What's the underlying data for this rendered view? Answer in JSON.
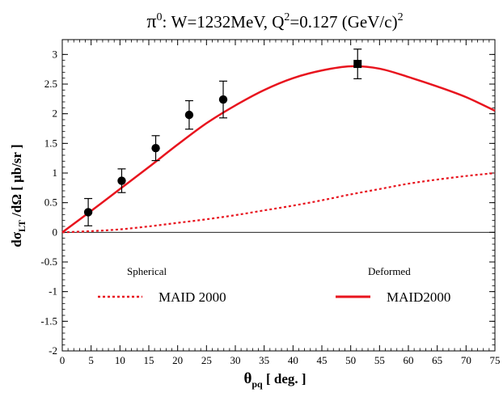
{
  "chart_data": {
    "type": "line",
    "title": {
      "prefix": "π",
      "prefix_sup": "0",
      "mid": ": W=1232MeV, Q",
      "mid_sup": "2",
      "suffix": "=0.127 (GeV/c)",
      "suffix_sup": "2"
    },
    "xlabel": {
      "base": "θ",
      "sub": "pq",
      "rest": " [ deg. ]"
    },
    "ylabel": {
      "pre": "dσ",
      "sub": "LT",
      "rest": " /dΩ [ μb/sr ]"
    },
    "xlim": [
      0,
      75
    ],
    "ylim": [
      -2,
      3.25
    ],
    "xticks": [
      0,
      5,
      10,
      15,
      20,
      25,
      30,
      35,
      40,
      45,
      50,
      55,
      60,
      65,
      70,
      75
    ],
    "yticks": [
      -2,
      -1.5,
      -1,
      -0.5,
      0,
      0.5,
      1,
      1.5,
      2,
      2.5,
      3
    ],
    "ytick_labels": [
      "-2",
      "-1.5",
      "-1",
      "-0.5",
      "0",
      "0.5",
      "1",
      "1.5",
      "2",
      "2.5",
      "3"
    ],
    "zero_line": true,
    "grid": false,
    "annotations": {
      "spherical": "Spherical",
      "deformed": "Deformed"
    },
    "series": [
      {
        "name": "MAID2000",
        "style": "solid",
        "color": "#e8141e",
        "x": [
          0,
          5,
          10,
          15,
          20,
          25,
          30,
          35,
          40,
          45,
          50,
          55,
          60,
          65,
          70,
          75
        ],
        "y": [
          0,
          0.36,
          0.73,
          1.1,
          1.48,
          1.84,
          2.14,
          2.4,
          2.6,
          2.73,
          2.8,
          2.76,
          2.62,
          2.46,
          2.28,
          2.05
        ]
      },
      {
        "name": "MAID 2000",
        "style": "dotted",
        "color": "#e8141e",
        "x": [
          0,
          5,
          10,
          15,
          20,
          25,
          30,
          35,
          40,
          45,
          50,
          55,
          60,
          65,
          70,
          75
        ],
        "y": [
          0,
          0.02,
          0.05,
          0.1,
          0.16,
          0.22,
          0.29,
          0.37,
          0.45,
          0.54,
          0.64,
          0.73,
          0.82,
          0.89,
          0.95,
          1.0
        ]
      }
    ],
    "points": [
      {
        "x": 4.5,
        "y": 0.34,
        "err": 0.23,
        "marker": "circle"
      },
      {
        "x": 10.3,
        "y": 0.87,
        "err": 0.2,
        "marker": "circle"
      },
      {
        "x": 16.2,
        "y": 1.42,
        "err": 0.21,
        "marker": "circle"
      },
      {
        "x": 22.0,
        "y": 1.98,
        "err": 0.24,
        "marker": "circle"
      },
      {
        "x": 27.9,
        "y": 2.24,
        "err": 0.31,
        "marker": "circle"
      },
      {
        "x": 51.2,
        "y": 2.84,
        "err": 0.25,
        "marker": "square"
      }
    ],
    "legend": [
      {
        "label": "MAID 2000",
        "style": "dotted"
      },
      {
        "label": "MAID2000",
        "style": "solid"
      }
    ]
  }
}
